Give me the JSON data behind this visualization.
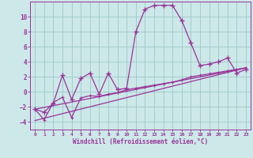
{
  "xlabel": "Windchill (Refroidissement éolien,°C)",
  "background_color": "#cce8e8",
  "grid_color": "#9ec8c8",
  "line_color": "#993399",
  "xlim": [
    -0.5,
    23.5
  ],
  "ylim": [
    -5,
    12
  ],
  "yticks": [
    -4,
    -2,
    0,
    2,
    4,
    6,
    8,
    10
  ],
  "xticks": [
    0,
    1,
    2,
    3,
    4,
    5,
    6,
    7,
    8,
    9,
    10,
    11,
    12,
    13,
    14,
    15,
    16,
    17,
    18,
    19,
    20,
    21,
    22,
    23
  ],
  "series1_x": [
    0,
    1,
    2,
    3,
    4,
    5,
    6,
    7,
    8,
    9,
    10,
    11,
    12,
    13,
    14,
    15,
    16,
    17,
    18,
    19,
    20,
    21,
    22,
    23
  ],
  "series1_y": [
    -2.3,
    -2.7,
    -1.5,
    2.2,
    -1.0,
    1.8,
    2.5,
    -0.3,
    2.5,
    0.3,
    0.5,
    8.0,
    11.0,
    11.5,
    11.5,
    11.5,
    9.5,
    6.5,
    3.5,
    3.7,
    4.0,
    4.5,
    2.5,
    3.0
  ],
  "series2_x": [
    0,
    1,
    2,
    3,
    4,
    5,
    6,
    7,
    8,
    9,
    10,
    11,
    12,
    13,
    14,
    15,
    16,
    17,
    18,
    19,
    20,
    21,
    22,
    23
  ],
  "series2_y": [
    -2.3,
    -3.7,
    -1.4,
    -0.7,
    -3.4,
    -0.8,
    -0.5,
    -0.6,
    -0.3,
    -0.1,
    0.3,
    0.5,
    0.7,
    0.9,
    1.1,
    1.3,
    1.6,
    2.0,
    2.2,
    2.4,
    2.6,
    2.8,
    3.0,
    3.2
  ],
  "series3_x": [
    0,
    23
  ],
  "series3_y": [
    -3.8,
    3.2
  ],
  "series4_x": [
    0,
    23
  ],
  "series4_y": [
    -2.3,
    3.2
  ]
}
